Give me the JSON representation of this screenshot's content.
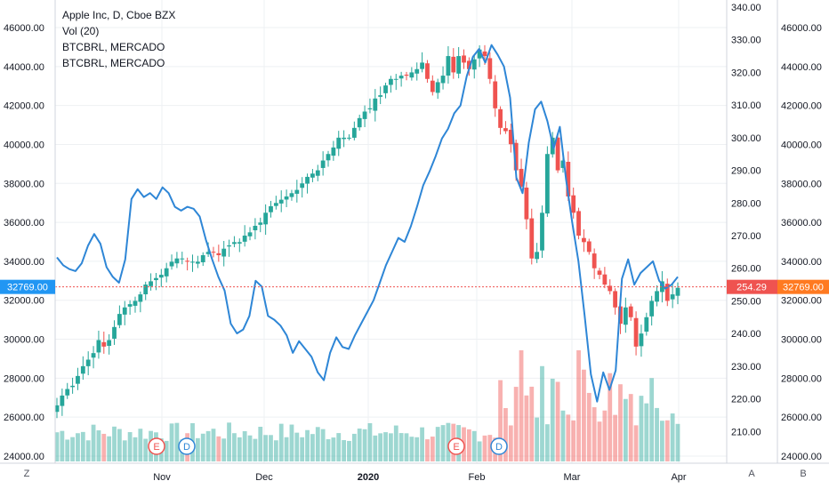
{
  "legend": {
    "title": "Apple Inc, D, Cboe BZX",
    "vol": "Vol (20)",
    "series1": "BTCBRL, MERCADO",
    "series2": "BTCBRL, MERCADO"
  },
  "corners": {
    "left": "Z",
    "right_a": "A",
    "right_b": "B"
  },
  "price_badges": {
    "left": "32769.00",
    "mid": "254.29",
    "right": "32769.00"
  },
  "colors": {
    "up": "#26a69a",
    "down": "#ef5350",
    "line": "#2e86d6",
    "badge_blue": "#2196f3",
    "badge_orange": "#ff7a21",
    "grid": "#eef0f3"
  },
  "events": [
    {
      "label": "E",
      "type": "earnings",
      "date": "2019-10-30"
    },
    {
      "label": "D",
      "type": "dividend",
      "date": "2019-11-07"
    },
    {
      "label": "E",
      "type": "earnings",
      "date": "2020-01-28"
    },
    {
      "label": "D",
      "type": "dividend",
      "date": "2020-02-07"
    }
  ],
  "chart_data": {
    "type": "candlestick",
    "x_ticks": [
      "Nov",
      "Dec",
      "2020",
      "Feb",
      "Mar",
      "Apr"
    ],
    "left_axis": {
      "ticks": [
        "46000.00",
        "44000.00",
        "42000.00",
        "40000.00",
        "38000.00",
        "36000.00",
        "34000.00",
        "32000.00",
        "30000.00",
        "28000.00",
        "26000.00",
        "24000.00"
      ],
      "range": [
        24000,
        46500
      ]
    },
    "mid_axis": {
      "ticks": [
        "340.00",
        "330.00",
        "320.00",
        "310.00",
        "300.00",
        "290.00",
        "280.00",
        "270.00",
        "260.00",
        "250.00",
        "240.00",
        "230.00",
        "220.00",
        "210.00"
      ],
      "range": [
        200,
        340
      ]
    },
    "right_axis": {
      "ticks": [
        "46000.00",
        "44000.00",
        "42000.00",
        "40000.00",
        "38000.00",
        "36000.00",
        "34000.00",
        "32000.00",
        "30000.00",
        "28000.00",
        "26000.00",
        "24000.00"
      ],
      "range": [
        24000,
        46500
      ]
    },
    "current_price_line": 254.29,
    "apple_candles_close": [
      218,
      221,
      223,
      224,
      227,
      230,
      232,
      234,
      238,
      236,
      238,
      242,
      246,
      248,
      249,
      250,
      252,
      255,
      256,
      257,
      258,
      260,
      262,
      263,
      263,
      262,
      262,
      262,
      264,
      265,
      265,
      264,
      266,
      267,
      268,
      268,
      270,
      271,
      273,
      274,
      277,
      279,
      280,
      281,
      282,
      283,
      284,
      286,
      288,
      289,
      290,
      293,
      295,
      297,
      300,
      300,
      300,
      303,
      306,
      308,
      309,
      312,
      313,
      316,
      318,
      318,
      319,
      319,
      320,
      321,
      323,
      318,
      314,
      317,
      319,
      325,
      320,
      325,
      323,
      321,
      324,
      327,
      325,
      318,
      309,
      303,
      302,
      298,
      290,
      285,
      275,
      263,
      265,
      277,
      295,
      300,
      290,
      293,
      282,
      277,
      270,
      268,
      265,
      260,
      258,
      255,
      253,
      248,
      243,
      248,
      245,
      236,
      240,
      245,
      250,
      253,
      256,
      250,
      252,
      254
    ],
    "btc_line": [
      34200,
      33800,
      33600,
      33500,
      33900,
      34800,
      35400,
      34900,
      33700,
      33200,
      32900,
      34100,
      37200,
      37700,
      37300,
      37500,
      37200,
      37800,
      37500,
      36800,
      36600,
      36800,
      36700,
      36300,
      35100,
      34100,
      33200,
      32500,
      30800,
      30300,
      30500,
      31200,
      33000,
      32700,
      31200,
      31000,
      30700,
      30200,
      29300,
      29900,
      29500,
      29100,
      28300,
      27900,
      29300,
      30100,
      29600,
      29500,
      30200,
      30800,
      31400,
      32000,
      32900,
      33800,
      34500,
      35200,
      35000,
      35800,
      36800,
      37900,
      38600,
      39400,
      40300,
      40800,
      41600,
      42000,
      43500,
      44500,
      44900,
      44200,
      45100,
      44600,
      44000,
      42400,
      38300,
      37500,
      40100,
      41800,
      42200,
      41200,
      39800,
      40900,
      38200,
      36000,
      34000,
      31200,
      28200,
      26800,
      28300,
      27400,
      28400,
      33100,
      34100,
      32800,
      33400,
      33700,
      34000,
      33000,
      32600,
      32800,
      33200
    ]
  }
}
